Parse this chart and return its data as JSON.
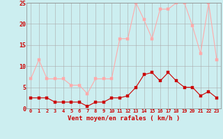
{
  "hours": [
    0,
    1,
    2,
    3,
    4,
    5,
    6,
    7,
    8,
    9,
    10,
    11,
    12,
    13,
    14,
    15,
    16,
    17,
    18,
    19,
    20,
    21,
    22,
    23
  ],
  "vent_moyen": [
    2.5,
    2.5,
    2.5,
    1.5,
    1.5,
    1.5,
    1.5,
    0.5,
    1.5,
    1.5,
    2.5,
    2.5,
    3.0,
    5.0,
    8.0,
    8.5,
    6.5,
    8.5,
    6.5,
    5.0,
    5.0,
    3.0,
    4.0,
    2.5
  ],
  "rafales": [
    7.0,
    11.5,
    7.0,
    7.0,
    7.0,
    5.5,
    5.5,
    3.5,
    7.0,
    7.0,
    7.0,
    16.5,
    16.5,
    25.0,
    21.0,
    16.5,
    23.5,
    23.5,
    25.0,
    25.0,
    19.5,
    13.0,
    25.0,
    11.5
  ],
  "ylim": [
    0,
    25
  ],
  "yticks": [
    0,
    5,
    10,
    15,
    20,
    25
  ],
  "xlabel": "Vent moyen/en rafales ( km/h )",
  "bg_color": "#cceef0",
  "grid_color": "#aaaaaa",
  "line_moyen_color": "#cc0000",
  "line_rafales_color": "#ffaaaa",
  "markersize": 2.5
}
